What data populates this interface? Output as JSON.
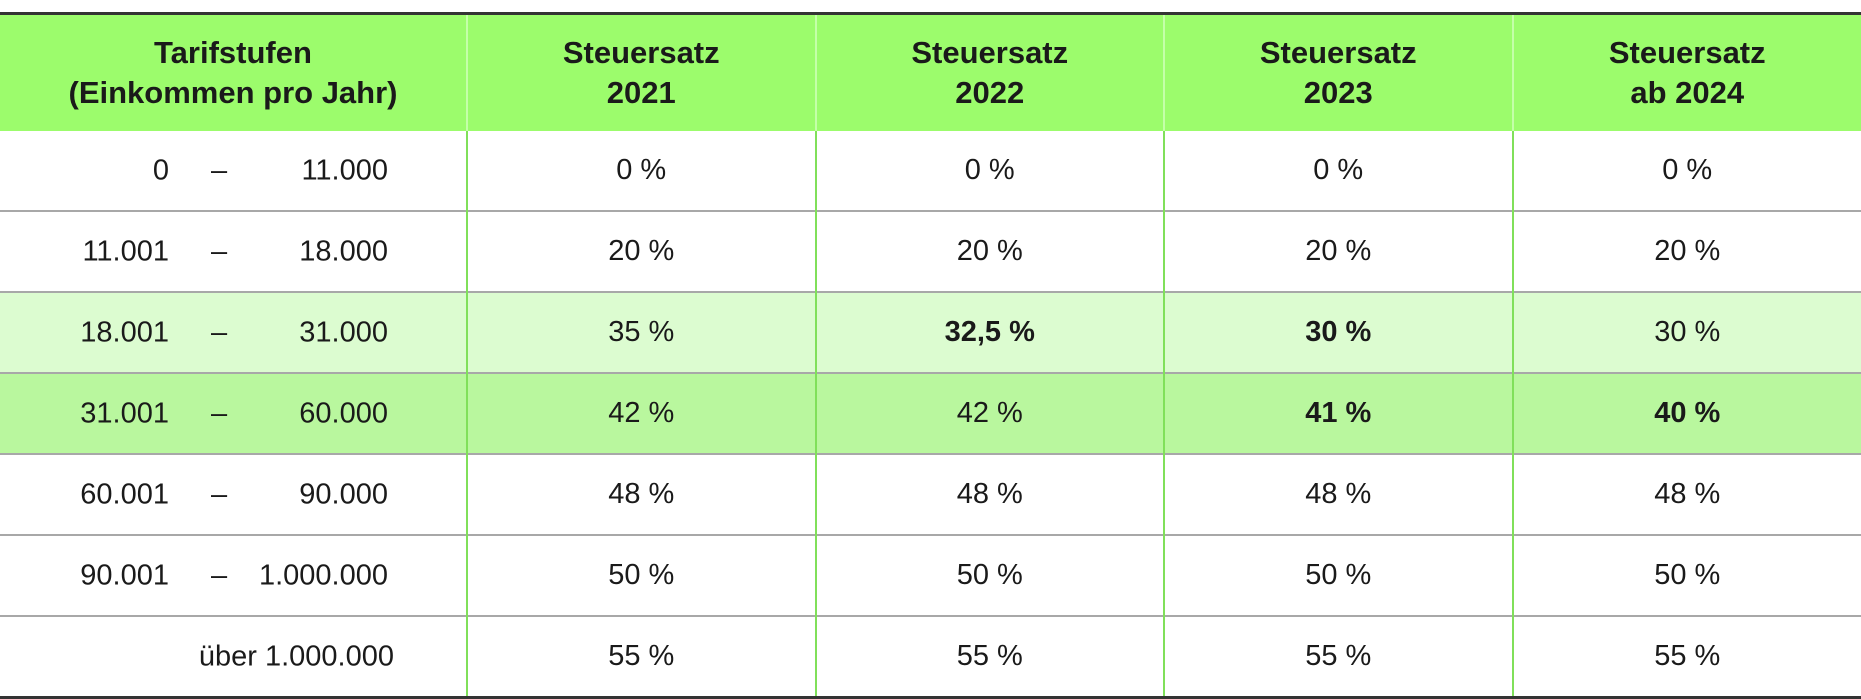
{
  "table": {
    "header": [
      [
        "Tarifstufen",
        "(Einkommen pro Jahr)"
      ],
      [
        "Steuersatz",
        "2021"
      ],
      [
        "Steuersatz",
        "2022"
      ],
      [
        "Steuersatz",
        "2023"
      ],
      [
        "Steuersatz",
        "ab 2024"
      ]
    ],
    "rows": [
      [
        [
          "0",
          "–",
          "11.000"
        ],
        "0 %",
        "0 %",
        "0 %",
        "0 %"
      ],
      [
        [
          "11.001",
          "–",
          "18.000"
        ],
        "20 %",
        "20 %",
        "20 %",
        "20 %"
      ],
      [
        [
          "18.001",
          "–",
          "31.000"
        ],
        "35 %",
        "32,5 %",
        "30 %",
        "30 %"
      ],
      [
        [
          "31.001",
          "–",
          "60.000"
        ],
        "42 %",
        "42 %",
        "41 %",
        "40 %"
      ],
      [
        [
          "60.001",
          "–",
          "90.000"
        ],
        "48 %",
        "48 %",
        "48 %",
        "48 %"
      ],
      [
        [
          "90.001",
          "–",
          "1.000.000"
        ],
        "50 %",
        "50 %",
        "50 %",
        "50 %"
      ],
      [
        "über 1.000.000",
        "55 %",
        "55 %",
        "55 %",
        "55 %"
      ]
    ]
  }
}
